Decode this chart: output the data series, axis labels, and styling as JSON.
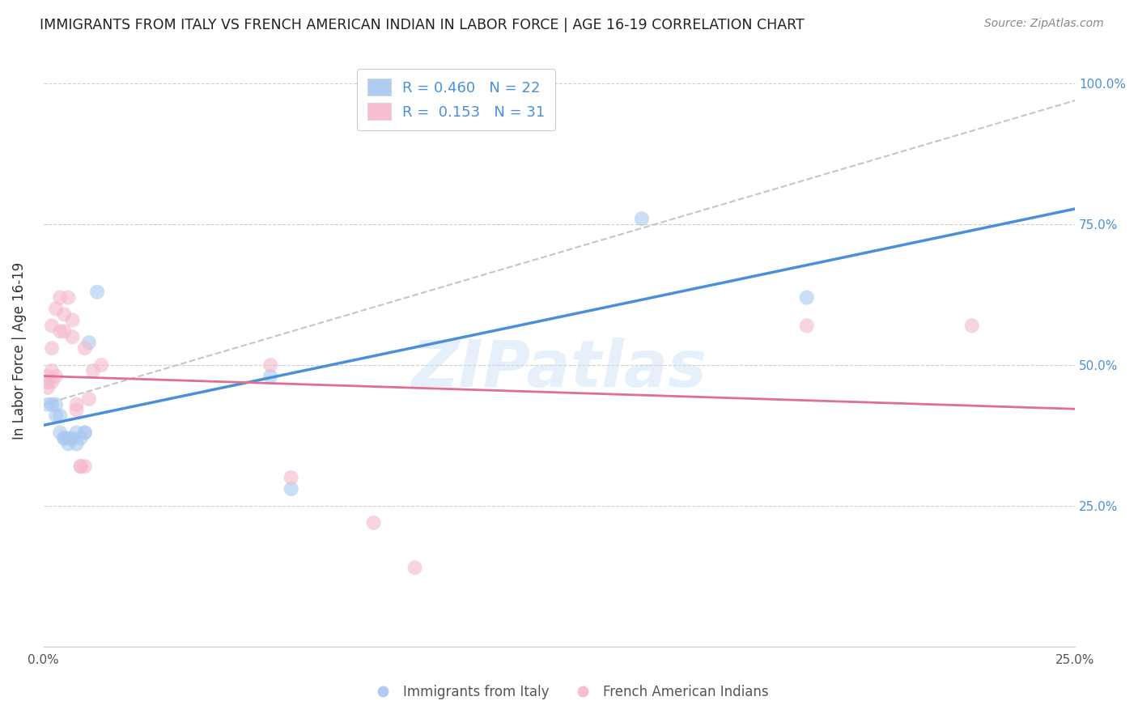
{
  "title": "IMMIGRANTS FROM ITALY VS FRENCH AMERICAN INDIAN IN LABOR FORCE | AGE 16-19 CORRELATION CHART",
  "source": "Source: ZipAtlas.com",
  "ylabel": "In Labor Force | Age 16-19",
  "R_italy": 0.46,
  "N_italy": 22,
  "R_french": 0.153,
  "N_french": 31,
  "color_italy": "#a8c8f0",
  "color_french": "#f4b8cb",
  "color_trendline_italy": "#4a90d9",
  "color_trendline_french": "#e07090",
  "color_dashed": "#b8b8b8",
  "watermark": "ZIPatlas",
  "italy_x": [
    0.001,
    0.002,
    0.003,
    0.003,
    0.004,
    0.004,
    0.005,
    0.005,
    0.006,
    0.006,
    0.007,
    0.008,
    0.008,
    0.009,
    0.01,
    0.01,
    0.011,
    0.013,
    0.055,
    0.06,
    0.145,
    0.185
  ],
  "italy_y": [
    0.43,
    0.43,
    0.41,
    0.43,
    0.38,
    0.41,
    0.37,
    0.37,
    0.37,
    0.36,
    0.37,
    0.36,
    0.38,
    0.37,
    0.38,
    0.38,
    0.54,
    0.63,
    0.48,
    0.28,
    0.76,
    0.62
  ],
  "french_x": [
    0.001,
    0.001,
    0.001,
    0.002,
    0.002,
    0.002,
    0.002,
    0.003,
    0.003,
    0.004,
    0.004,
    0.005,
    0.005,
    0.006,
    0.007,
    0.007,
    0.008,
    0.008,
    0.009,
    0.009,
    0.01,
    0.01,
    0.011,
    0.012,
    0.014,
    0.055,
    0.06,
    0.08,
    0.09,
    0.185,
    0.225
  ],
  "french_y": [
    0.46,
    0.47,
    0.48,
    0.47,
    0.49,
    0.53,
    0.57,
    0.48,
    0.6,
    0.56,
    0.62,
    0.56,
    0.59,
    0.62,
    0.55,
    0.58,
    0.42,
    0.43,
    0.32,
    0.32,
    0.32,
    0.53,
    0.44,
    0.49,
    0.5,
    0.5,
    0.3,
    0.22,
    0.14,
    0.57,
    0.57
  ],
  "xlim": [
    0.0,
    0.25
  ],
  "ylim": [
    0.0,
    1.05
  ],
  "ytick_vals": [
    0.0,
    0.25,
    0.5,
    0.75,
    1.0
  ],
  "ytick_labels": [
    "",
    "25.0%",
    "50.0%",
    "75.0%",
    "100.0%"
  ],
  "xtick_vals": [
    0.0,
    0.05,
    0.1,
    0.15,
    0.2,
    0.25
  ],
  "xtick_labels": [
    "0.0%",
    "",
    "",
    "",
    "",
    "25.0%"
  ],
  "background_color": "#ffffff",
  "scatter_alpha": 0.6,
  "scatter_size": 170,
  "legend_italy_label": "Immigrants from Italy",
  "legend_french_label": "French American Indians",
  "tick_color": "#4a90d9",
  "grid_color": "#d0d0d0"
}
